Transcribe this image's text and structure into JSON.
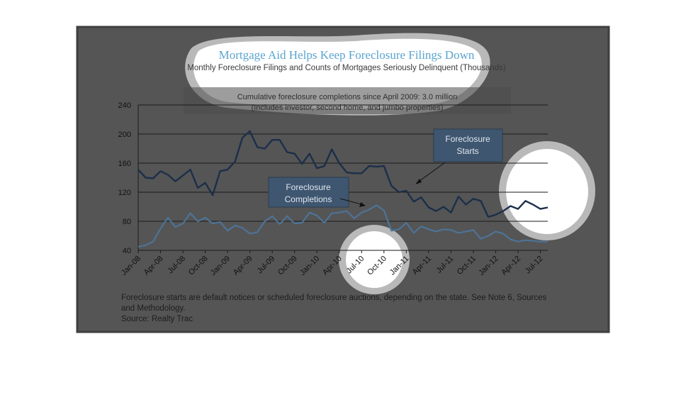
{
  "chart_data": {
    "type": "line",
    "title": "Mortgage Aid Helps Keep Foreclosure Filings Down",
    "subtitle": "Monthly Foreclosure Filings and Counts of Mortgages Seriously Delinquent (Thousands)",
    "annotation_box": {
      "line1": "Cumulative foreclosure completions since April 2009: 3.0 million",
      "line2": "(Includes investor, second home, and jumbo properties)"
    },
    "callouts": {
      "starts": [
        "Foreclosure",
        "Starts"
      ],
      "completions": [
        "Foreclosure",
        "Completions"
      ]
    },
    "ylim": [
      40,
      240
    ],
    "yticks": [
      40,
      80,
      120,
      160,
      200,
      240
    ],
    "xtick_labels": [
      "Jan-08",
      "Apr-08",
      "Jul-08",
      "Oct-08",
      "Jan-09",
      "Apr-09",
      "Jul-09",
      "Oct-09",
      "Jan-10",
      "Apr-10",
      "Jul-10",
      "Oct-10",
      "Jan-11",
      "Apr-11",
      "Jul-11",
      "Oct-11",
      "Jan-12",
      "Apr-12",
      "Jul-12"
    ],
    "grid": true,
    "series": [
      {
        "name": "Foreclosure Starts",
        "color": "#1c2f4a",
        "values": [
          151,
          140,
          139,
          149,
          144,
          135,
          143,
          151,
          126,
          133,
          116,
          149,
          151,
          162,
          195,
          204,
          182,
          180,
          192,
          192,
          175,
          173,
          159,
          173,
          153,
          156,
          179,
          160,
          147,
          146,
          146,
          156,
          155,
          156,
          129,
          120,
          122,
          107,
          113,
          99,
          94,
          100,
          92,
          114,
          103,
          111,
          108,
          86,
          89,
          94,
          101,
          97,
          108,
          103,
          97,
          99
        ]
      },
      {
        "name": "Foreclosure Completions",
        "color": "#4e7397",
        "values": [
          45,
          47,
          52,
          70,
          85,
          72,
          77,
          91,
          80,
          85,
          77,
          79,
          67,
          74,
          71,
          63,
          65,
          80,
          87,
          76,
          87,
          77,
          78,
          92,
          88,
          78,
          91,
          92,
          94,
          84,
          92,
          96,
          102,
          95,
          67,
          69,
          78,
          64,
          73,
          69,
          66,
          69,
          68,
          64,
          66,
          68,
          56,
          60,
          66,
          63,
          55,
          52,
          54,
          53,
          52,
          52
        ]
      }
    ],
    "footer": {
      "line1": "Foreclosure starts are default notices or scheduled foreclosure auctions, depending on the state. See Note 6, Sources",
      "line2": "and Methodology.",
      "line3": "Source: Realty Trac"
    }
  },
  "colors": {
    "panel": "#555555",
    "panel_border": "#3f3f3f",
    "note_box": "#4c4c4c",
    "callout_fill": "#3f5670",
    "callout_border": "#2b3c50"
  }
}
